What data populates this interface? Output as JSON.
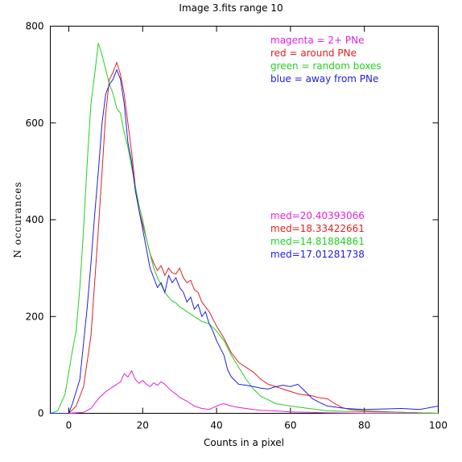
{
  "chart_data": {
    "type": "line",
    "title": "Image 3.fits   range 10",
    "xlabel": "Counts in a pixel",
    "ylabel": "N occurances",
    "xlim": [
      -5,
      100
    ],
    "ylim": [
      0,
      800
    ],
    "x_ticks": [
      0,
      20,
      40,
      60,
      80,
      100
    ],
    "y_ticks": [
      0,
      200,
      400,
      600,
      800
    ],
    "grid": false,
    "legend_position": "top-right",
    "series": [
      {
        "name": "magenta = 2+ PNe",
        "color": "#e020e0",
        "median_label": "med=20.40393066",
        "points": [
          [
            -5,
            0
          ],
          [
            0,
            0
          ],
          [
            4,
            2
          ],
          [
            6,
            10
          ],
          [
            8,
            30
          ],
          [
            10,
            45
          ],
          [
            12,
            55
          ],
          [
            14,
            65
          ],
          [
            15,
            82
          ],
          [
            16,
            75
          ],
          [
            17,
            88
          ],
          [
            18,
            70
          ],
          [
            19,
            62
          ],
          [
            20,
            68
          ],
          [
            21,
            60
          ],
          [
            22,
            55
          ],
          [
            23,
            63
          ],
          [
            24,
            58
          ],
          [
            25,
            65
          ],
          [
            26,
            60
          ],
          [
            27,
            52
          ],
          [
            28,
            45
          ],
          [
            29,
            40
          ],
          [
            30,
            33
          ],
          [
            32,
            25
          ],
          [
            34,
            15
          ],
          [
            36,
            10
          ],
          [
            38,
            8
          ],
          [
            40,
            15
          ],
          [
            41,
            18
          ],
          [
            42,
            20
          ],
          [
            44,
            15
          ],
          [
            46,
            12
          ],
          [
            48,
            10
          ],
          [
            50,
            8
          ],
          [
            52,
            6
          ],
          [
            56,
            5
          ],
          [
            60,
            3
          ],
          [
            65,
            2
          ],
          [
            70,
            1
          ],
          [
            80,
            0
          ],
          [
            100,
            0
          ]
        ]
      },
      {
        "name": "red = around PNe",
        "color": "#e02020",
        "median_label": "med=18.33422661",
        "points": [
          [
            -5,
            0
          ],
          [
            0,
            0
          ],
          [
            2,
            15
          ],
          [
            4,
            55
          ],
          [
            6,
            160
          ],
          [
            8,
            380
          ],
          [
            9,
            500
          ],
          [
            10,
            620
          ],
          [
            11,
            690
          ],
          [
            12,
            705
          ],
          [
            13,
            725
          ],
          [
            14,
            700
          ],
          [
            15,
            660
          ],
          [
            16,
            600
          ],
          [
            17,
            540
          ],
          [
            18,
            470
          ],
          [
            19,
            420
          ],
          [
            20,
            390
          ],
          [
            21,
            360
          ],
          [
            22,
            330
          ],
          [
            23,
            310
          ],
          [
            24,
            295
          ],
          [
            25,
            305
          ],
          [
            26,
            285
          ],
          [
            27,
            300
          ],
          [
            28,
            290
          ],
          [
            29,
            288
          ],
          [
            30,
            300
          ],
          [
            31,
            280
          ],
          [
            32,
            270
          ],
          [
            33,
            275
          ],
          [
            34,
            255
          ],
          [
            35,
            250
          ],
          [
            36,
            230
          ],
          [
            37,
            220
          ],
          [
            38,
            210
          ],
          [
            40,
            180
          ],
          [
            42,
            155
          ],
          [
            44,
            125
          ],
          [
            46,
            105
          ],
          [
            48,
            95
          ],
          [
            50,
            85
          ],
          [
            52,
            70
          ],
          [
            54,
            60
          ],
          [
            56,
            55
          ],
          [
            58,
            50
          ],
          [
            60,
            45
          ],
          [
            62,
            40
          ],
          [
            64,
            38
          ],
          [
            66,
            36
          ],
          [
            68,
            32
          ],
          [
            70,
            30
          ],
          [
            72,
            20
          ],
          [
            74,
            12
          ],
          [
            76,
            8
          ],
          [
            80,
            5
          ],
          [
            90,
            2
          ],
          [
            100,
            0
          ]
        ]
      },
      {
        "name": "green = random boxes",
        "color": "#20d020",
        "median_label": "med=14.81884861",
        "points": [
          [
            -5,
            0
          ],
          [
            -3,
            5
          ],
          [
            -1,
            40
          ],
          [
            1,
            130
          ],
          [
            2,
            170
          ],
          [
            3,
            260
          ],
          [
            4,
            380
          ],
          [
            5,
            520
          ],
          [
            6,
            640
          ],
          [
            7,
            700
          ],
          [
            8,
            765
          ],
          [
            9,
            740
          ],
          [
            10,
            710
          ],
          [
            11,
            680
          ],
          [
            12,
            660
          ],
          [
            13,
            630
          ],
          [
            14,
            620
          ],
          [
            15,
            580
          ],
          [
            16,
            550
          ],
          [
            17,
            510
          ],
          [
            18,
            470
          ],
          [
            19,
            430
          ],
          [
            20,
            400
          ],
          [
            21,
            360
          ],
          [
            22,
            330
          ],
          [
            23,
            300
          ],
          [
            24,
            280
          ],
          [
            25,
            265
          ],
          [
            26,
            250
          ],
          [
            27,
            240
          ],
          [
            28,
            232
          ],
          [
            29,
            228
          ],
          [
            30,
            220
          ],
          [
            32,
            210
          ],
          [
            34,
            200
          ],
          [
            36,
            190
          ],
          [
            38,
            185
          ],
          [
            40,
            170
          ],
          [
            42,
            150
          ],
          [
            44,
            120
          ],
          [
            46,
            95
          ],
          [
            48,
            70
          ],
          [
            50,
            50
          ],
          [
            52,
            35
          ],
          [
            54,
            28
          ],
          [
            56,
            20
          ],
          [
            60,
            15
          ],
          [
            65,
            10
          ],
          [
            70,
            5
          ],
          [
            80,
            3
          ],
          [
            90,
            2
          ],
          [
            100,
            0
          ]
        ]
      },
      {
        "name": "blue = away from PNe",
        "color": "#2020e0",
        "median_label": "med=17.01281738",
        "points": [
          [
            -5,
            0
          ],
          [
            0,
            0
          ],
          [
            1,
            20
          ],
          [
            3,
            70
          ],
          [
            5,
            220
          ],
          [
            6,
            310
          ],
          [
            7,
            410
          ],
          [
            8,
            500
          ],
          [
            9,
            600
          ],
          [
            10,
            660
          ],
          [
            11,
            680
          ],
          [
            12,
            690
          ],
          [
            13,
            710
          ],
          [
            14,
            690
          ],
          [
            15,
            640
          ],
          [
            16,
            560
          ],
          [
            17,
            520
          ],
          [
            18,
            460
          ],
          [
            19,
            420
          ],
          [
            20,
            380
          ],
          [
            21,
            340
          ],
          [
            22,
            300
          ],
          [
            23,
            280
          ],
          [
            24,
            260
          ],
          [
            25,
            270
          ],
          [
            26,
            250
          ],
          [
            27,
            285
          ],
          [
            28,
            270
          ],
          [
            29,
            280
          ],
          [
            30,
            260
          ],
          [
            31,
            250
          ],
          [
            32,
            230
          ],
          [
            33,
            240
          ],
          [
            34,
            215
          ],
          [
            35,
            225
          ],
          [
            36,
            200
          ],
          [
            37,
            210
          ],
          [
            38,
            185
          ],
          [
            39,
            170
          ],
          [
            40,
            150
          ],
          [
            42,
            120
          ],
          [
            43,
            90
          ],
          [
            44,
            75
          ],
          [
            46,
            60
          ],
          [
            48,
            58
          ],
          [
            50,
            55
          ],
          [
            52,
            52
          ],
          [
            54,
            50
          ],
          [
            56,
            55
          ],
          [
            58,
            58
          ],
          [
            60,
            55
          ],
          [
            62,
            60
          ],
          [
            64,
            45
          ],
          [
            66,
            30
          ],
          [
            68,
            22
          ],
          [
            70,
            15
          ],
          [
            75,
            10
          ],
          [
            80,
            8
          ],
          [
            90,
            10
          ],
          [
            95,
            8
          ],
          [
            100,
            15
          ]
        ]
      }
    ]
  }
}
